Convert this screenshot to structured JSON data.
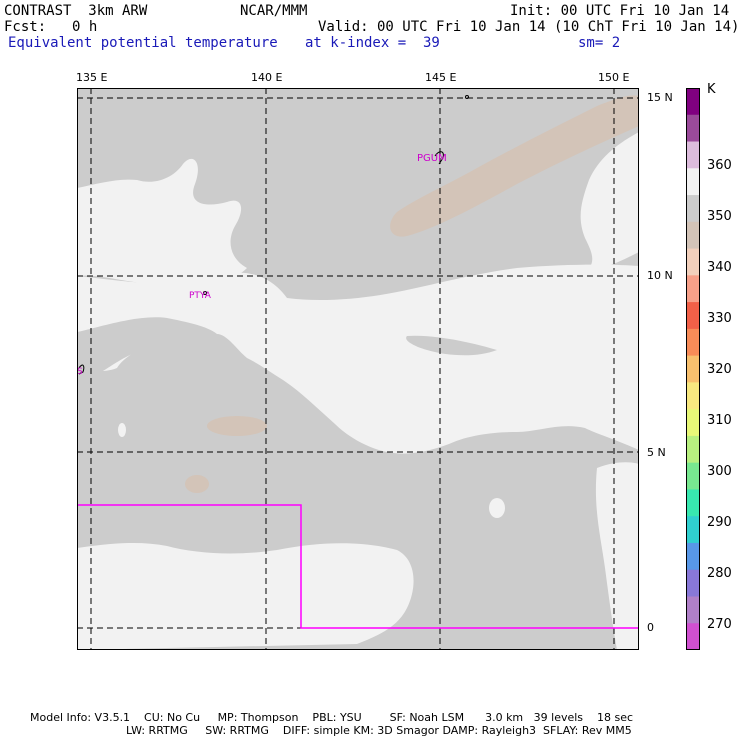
{
  "header": {
    "model_name": "CONTRAST  3km ARW",
    "center": "NCAR/MMM",
    "init": "Init: 00 UTC Fri 10 Jan 14",
    "fcst_label": "Fcst:",
    "fcst_value": "0 h",
    "valid": "Valid: 00 UTC Fri 10 Jan 14 (10 ChT Fri 10 Jan 14)",
    "field_name": "Equivalent potential temperature",
    "level": "at k-index =  39",
    "smoothing": "sm= 2"
  },
  "map": {
    "lon_labels": [
      "135 E",
      "140 E",
      "145 E",
      "150 E"
    ],
    "lat_labels": [
      "15 N",
      "10 N",
      "5 N",
      "0"
    ],
    "stations": [
      {
        "id": "PGUM",
        "label": "PGUM"
      },
      {
        "id": "PTYA",
        "label": "PTYA"
      },
      {
        "id": "PTRO",
        "label": "S"
      }
    ]
  },
  "colorbar": {
    "unit": "K",
    "labels": [
      "360",
      "350",
      "340",
      "330",
      "320",
      "310",
      "300",
      "290",
      "280",
      "270"
    ],
    "colors": [
      "#800080",
      "#9a4a9a",
      "#dcbcdc",
      "#f2f2f2",
      "#cccccc",
      "#d3c4b8",
      "#f2d0bc",
      "#f7a089",
      "#f26048",
      "#f88c58",
      "#f8c06e",
      "#f8e880",
      "#e8f878",
      "#b8f080",
      "#78e890",
      "#38e8b0",
      "#30d0d0",
      "#5898e8",
      "#8878d8",
      "#b080c8",
      "#d050d0"
    ]
  },
  "colors": {
    "shade_grey": "#cccccc",
    "shade_light": "#f2f2f2",
    "shade_tan": "#d3c4b8",
    "boundary": "#ff00ff",
    "station_label": "#cc00cc"
  },
  "footer": {
    "line1": "Model Info: V3.5.1    CU: No Cu     MP: Thompson    PBL: YSU        SF: Noah LSM      3.0 km   39 levels    18 sec",
    "line2": "LW: RRTMG     SW: RRTMG    DIFF: simple KM: 3D Smagor DAMP: Rayleigh3  SFLAY: Rev MM5"
  }
}
